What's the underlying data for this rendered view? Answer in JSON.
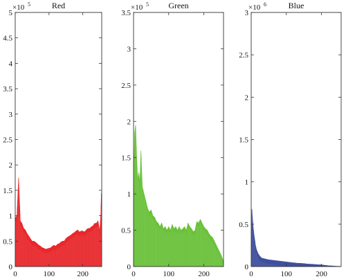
{
  "chart_data": [
    {
      "type": "area",
      "title": "Red",
      "color": "#e8282c",
      "multiplier": "×10",
      "multiplier_exp": "5",
      "xlim": [
        0,
        256
      ],
      "ylim": [
        0,
        5
      ],
      "xticks": [
        0,
        100,
        200
      ],
      "yticks": [
        0,
        0.5,
        1,
        1.5,
        2,
        2.5,
        3,
        3.5,
        4,
        4.5,
        5
      ],
      "x": [
        0,
        5,
        10,
        15,
        20,
        25,
        30,
        35,
        40,
        45,
        50,
        55,
        60,
        65,
        70,
        75,
        80,
        85,
        90,
        95,
        100,
        105,
        110,
        115,
        120,
        125,
        130,
        135,
        140,
        145,
        150,
        155,
        160,
        165,
        170,
        175,
        180,
        185,
        190,
        195,
        200,
        205,
        210,
        215,
        220,
        225,
        230,
        235,
        240,
        245,
        250,
        253,
        255
      ],
      "values": [
        0.95,
        1.0,
        1.75,
        0.9,
        0.85,
        0.75,
        0.72,
        0.65,
        0.6,
        0.55,
        0.5,
        0.5,
        0.48,
        0.45,
        0.42,
        0.4,
        0.37,
        0.36,
        0.34,
        0.35,
        0.36,
        0.37,
        0.4,
        0.42,
        0.4,
        0.44,
        0.45,
        0.48,
        0.5,
        0.5,
        0.55,
        0.58,
        0.6,
        0.62,
        0.65,
        0.67,
        0.7,
        0.72,
        0.68,
        0.7,
        0.7,
        0.68,
        0.72,
        0.75,
        0.75,
        0.78,
        0.8,
        0.85,
        0.85,
        0.9,
        0.7,
        1.0,
        1.45
      ]
    },
    {
      "type": "area",
      "title": "Green",
      "color": "#6ac13a",
      "multiplier": "×10",
      "multiplier_exp": "5",
      "xlim": [
        0,
        256
      ],
      "ylim": [
        0,
        3.5
      ],
      "xticks": [
        0,
        100,
        200
      ],
      "yticks": [
        0,
        0.5,
        1,
        1.5,
        2,
        2.5,
        3,
        3.5
      ],
      "x": [
        0,
        3,
        6,
        9,
        12,
        15,
        18,
        21,
        25,
        30,
        35,
        40,
        45,
        50,
        55,
        60,
        65,
        70,
        75,
        80,
        85,
        90,
        95,
        100,
        105,
        110,
        115,
        120,
        125,
        130,
        135,
        140,
        145,
        150,
        155,
        160,
        165,
        170,
        175,
        180,
        185,
        190,
        195,
        200,
        205,
        210,
        215,
        220,
        225,
        230,
        235,
        240,
        245,
        250,
        255
      ],
      "values": [
        1.0,
        1.85,
        1.95,
        1.5,
        1.2,
        1.3,
        1.15,
        1.6,
        1.1,
        1.0,
        0.9,
        0.8,
        0.75,
        0.78,
        0.7,
        0.68,
        0.62,
        0.6,
        0.55,
        0.6,
        0.52,
        0.55,
        0.5,
        0.55,
        0.5,
        0.58,
        0.52,
        0.55,
        0.5,
        0.55,
        0.5,
        0.52,
        0.55,
        0.5,
        0.6,
        0.55,
        0.52,
        0.48,
        0.5,
        0.62,
        0.6,
        0.65,
        0.6,
        0.55,
        0.52,
        0.5,
        0.45,
        0.42,
        0.4,
        0.35,
        0.3,
        0.25,
        0.2,
        0.15,
        0.08
      ]
    },
    {
      "type": "area",
      "title": "Blue",
      "color": "#3f4f9e",
      "multiplier": "×10",
      "multiplier_exp": "6",
      "xlim": [
        0,
        256
      ],
      "ylim": [
        0,
        3
      ],
      "xticks": [
        0,
        100,
        200
      ],
      "yticks": [
        0,
        0.5,
        1,
        1.5,
        2,
        2.5,
        3
      ],
      "x": [
        0,
        2,
        4,
        6,
        8,
        10,
        12,
        15,
        20,
        25,
        30,
        40,
        50,
        60,
        70,
        80,
        90,
        100,
        110,
        120,
        130,
        140,
        150,
        160,
        170,
        180,
        190,
        200,
        210,
        220,
        230,
        240,
        250,
        255
      ],
      "values": [
        0.3,
        0.68,
        0.55,
        0.45,
        0.38,
        0.32,
        0.26,
        0.2,
        0.15,
        0.12,
        0.1,
        0.09,
        0.08,
        0.075,
        0.07,
        0.065,
        0.06,
        0.055,
        0.05,
        0.045,
        0.04,
        0.038,
        0.035,
        0.03,
        0.028,
        0.025,
        0.022,
        0.02,
        0.015,
        0.01,
        0.008,
        0.005,
        0.003,
        0.002
      ]
    }
  ]
}
